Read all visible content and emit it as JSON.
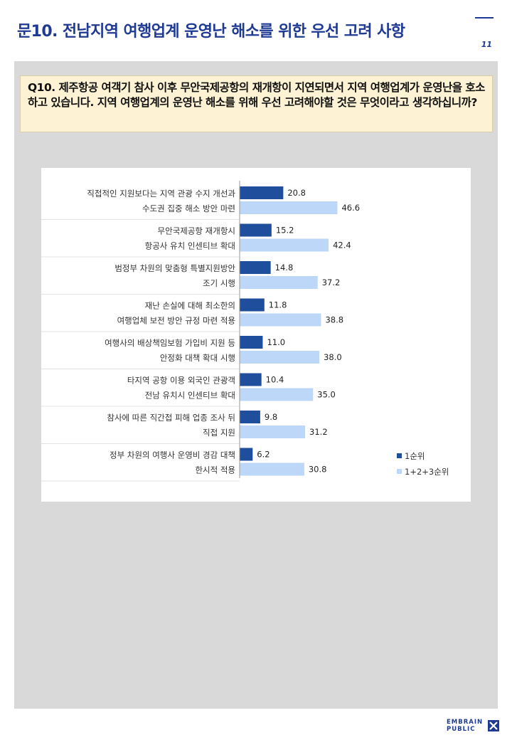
{
  "page": {
    "title": "문10. 전남지역 여행업계 운영난 해소를 위한 우선 고려 사항",
    "page_number": "11",
    "question": "Q10. 제주항공 여객기 참사 이후 무안국제공항의 재개항이 지연되면서 지역 여행업계가 운영난을 호소하고 있습니다. 지역 여행업계의 운영난 해소를 위해 우선 고려해야할 것은 무엇이라고 생각하십니까?",
    "logo_line1": "EMBRAIN",
    "logo_line2": "PUBLIC"
  },
  "colors": {
    "title": "#1f3a93",
    "series1": "#1f4e9c",
    "series2": "#bcd7f7",
    "panel": "#d9d9d9",
    "question_bg": "#fdf3d4"
  },
  "chart_data": {
    "type": "bar",
    "orientation": "horizontal",
    "categories": [
      [
        "직접적인 지원보다는 지역 관광 수지 개선과",
        "수도권 집중 해소 방안 마련"
      ],
      [
        "무안국제공항 재개항시",
        "항공사 유치 인센티브 확대"
      ],
      [
        "범정부 차원의 맞춤형 특별지원방안",
        "조기 시행"
      ],
      [
        "재난 손실에 대해 최소한의",
        "여행업체 보전 방안 규정 마련 적용"
      ],
      [
        "여행사의 배상책임보험 가입비 지원 등",
        "안정화 대책 확대 시행"
      ],
      [
        "타지역 공항 이용 외국인 관광객",
        "전남 유치시 인센티브 확대"
      ],
      [
        "참사에 따른 직간접 피해 업종 조사 뒤",
        "직접 지원"
      ],
      [
        "정부 차원의 여행사 운영비 경감 대책",
        "한시적 적용"
      ]
    ],
    "series": [
      {
        "name": "1순위",
        "values": [
          20.8,
          15.2,
          14.8,
          11.8,
          11.0,
          10.4,
          9.8,
          6.2
        ]
      },
      {
        "name": "1+2+3순위",
        "values": [
          46.6,
          42.4,
          37.2,
          38.8,
          38.0,
          35.0,
          31.2,
          30.8
        ]
      }
    ],
    "xlim": [
      0,
      100
    ],
    "legend_position": "bottom-right"
  }
}
